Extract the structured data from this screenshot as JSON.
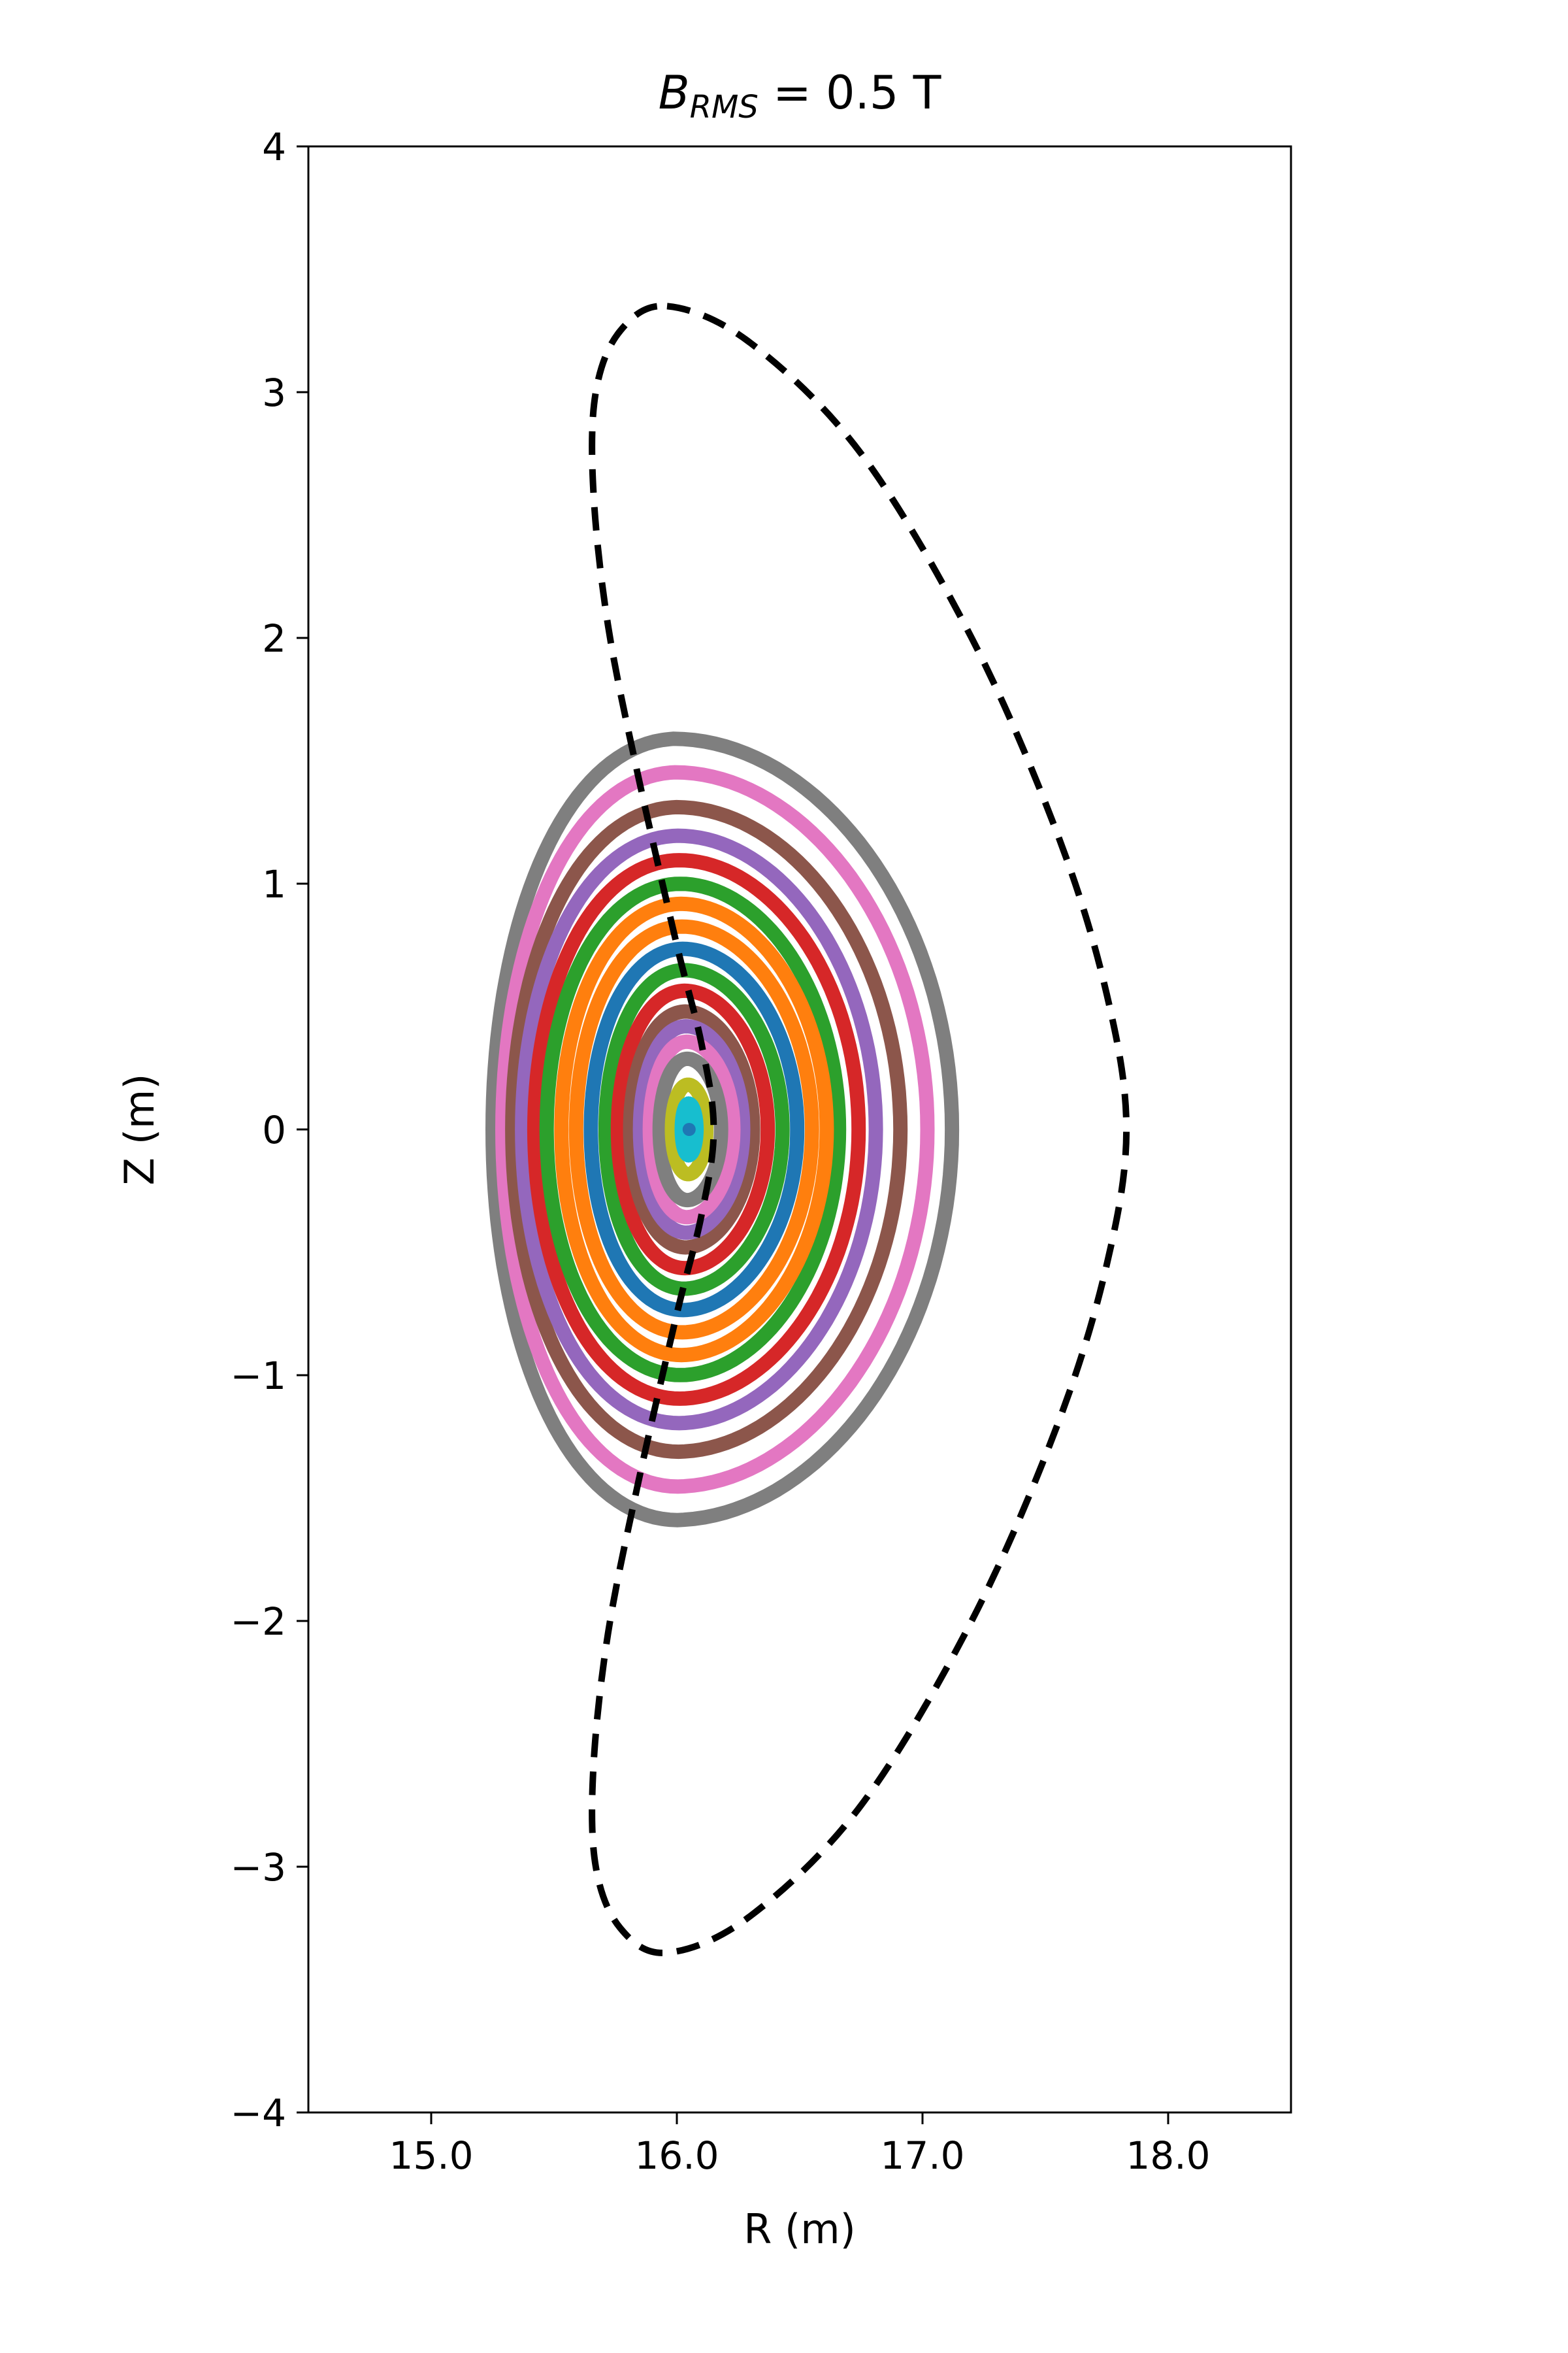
{
  "chart_data": {
    "type": "line",
    "title": "B_RMS = 0.5 T",
    "title_parts": {
      "symbol": "B",
      "subscript": "RMS",
      "rest": " = 0.5 T"
    },
    "xlabel": "R (m)",
    "ylabel": "Z (m)",
    "xlim": [
      14.5,
      18.5
    ],
    "ylim": [
      -4,
      4
    ],
    "xticks": [
      15.0,
      16.0,
      17.0,
      18.0
    ],
    "xtick_labels": [
      "15.0",
      "16.0",
      "17.0",
      "18.0"
    ],
    "yticks": [
      -4,
      -3,
      -2,
      -1,
      0,
      1,
      2,
      3,
      4
    ],
    "ytick_labels": [
      "−4",
      "−3",
      "−2",
      "−1",
      "0",
      "1",
      "2",
      "3",
      "4"
    ],
    "grid": false,
    "legend": "none",
    "boundary": {
      "style": "dashed",
      "color": "#000000",
      "x": [
        15.96,
        16.3,
        16.75,
        17.2,
        17.55,
        17.75,
        17.83,
        17.75,
        17.55,
        17.2,
        16.75,
        16.3,
        15.96,
        15.77,
        15.67,
        15.66,
        15.72,
        15.84,
        16.0,
        16.1,
        16.15,
        16.1,
        16.0,
        15.84,
        15.72,
        15.66,
        15.67,
        15.77,
        15.96
      ],
      "y": [
        3.35,
        3.2,
        2.75,
        2.0,
        1.2,
        0.55,
        0.0,
        -0.55,
        -1.2,
        -2.0,
        -2.75,
        -3.2,
        -3.35,
        -3.25,
        -3.0,
        -2.6,
        -2.05,
        -1.45,
        -0.75,
        -0.35,
        0.0,
        0.35,
        0.75,
        1.45,
        2.05,
        2.6,
        3.0,
        3.25,
        3.35
      ]
    },
    "magnetic_axis": {
      "R": 16.05,
      "Z": 0.0
    },
    "surfaces": [
      {
        "color": "#17becf",
        "r_in": 0.03,
        "r_out": 0.03,
        "kappa": 3.5
      },
      {
        "color": "#bcbd22",
        "r_in": 0.07,
        "r_out": 0.07,
        "kappa": 2.6
      },
      {
        "color": "#7f7f7f",
        "r_in": 0.12,
        "r_out": 0.13,
        "kappa": 2.3
      },
      {
        "color": "#e377c2",
        "r_in": 0.16,
        "r_out": 0.18,
        "kappa": 2.1
      },
      {
        "color": "#9467bd",
        "r_in": 0.2,
        "r_out": 0.22,
        "kappa": 2.0
      },
      {
        "color": "#8c564b",
        "r_in": 0.24,
        "r_out": 0.26,
        "kappa": 1.92
      },
      {
        "color": "#d62728",
        "r_in": 0.29,
        "r_out": 0.32,
        "kappa": 1.85
      },
      {
        "color": "#2ca02c",
        "r_in": 0.34,
        "r_out": 0.38,
        "kappa": 1.8
      },
      {
        "color": "#1f77b4",
        "r_in": 0.4,
        "r_out": 0.44,
        "kappa": 1.75
      },
      {
        "color": "#ff7f0e",
        "r_in": 0.46,
        "r_out": 0.5,
        "kappa": 1.72
      },
      {
        "color": "#ff7f0e",
        "r_in": 0.52,
        "r_out": 0.56,
        "kappa": 1.7
      },
      {
        "color": "#2ca02c",
        "r_in": 0.58,
        "r_out": 0.61,
        "kappa": 1.68
      },
      {
        "color": "#d62728",
        "r_in": 0.63,
        "r_out": 0.69,
        "kappa": 1.66
      },
      {
        "color": "#9467bd",
        "r_in": 0.68,
        "r_out": 0.76,
        "kappa": 1.66
      },
      {
        "color": "#8c564b",
        "r_in": 0.72,
        "r_out": 0.86,
        "kappa": 1.66
      },
      {
        "color": "#e377c2",
        "r_in": 0.76,
        "r_out": 0.97,
        "kappa": 1.68
      },
      {
        "color": "#7f7f7f",
        "r_in": 0.8,
        "r_out": 1.07,
        "kappa": 1.7
      }
    ]
  }
}
